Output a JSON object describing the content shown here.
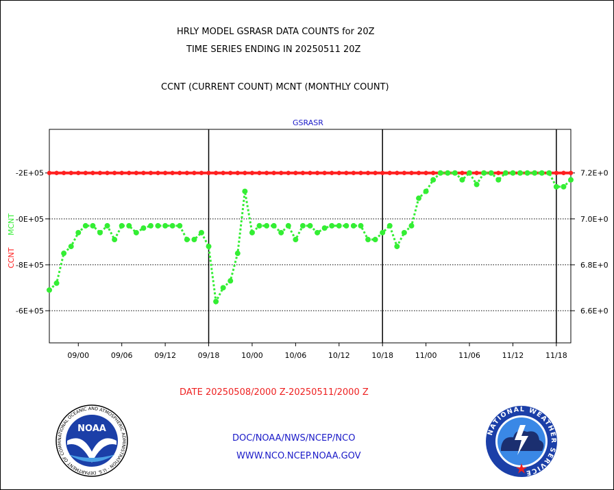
{
  "header": {
    "title_line1": "HRLY MODEL GSRASR DATA COUNTS for 20Z",
    "title_line2": "TIME SERIES ENDING IN 20250511 20Z",
    "subtitle": "CCNT (CURRENT COUNT) MCNT (MONTHLY COUNT)"
  },
  "footer": {
    "date_range": "DATE 20250508/2000 Z-20250511/2000 Z",
    "link1": "DOC/NOAA/NWS/NCEP/NCO",
    "link2": "WWW.NCO.NCEP.NOAA.GOV"
  },
  "logos": {
    "noaa_text": "NOAA",
    "noaa_ring": "NATIONAL OCEANIC AND ATMOSPHERIC ADMINISTRATION · U.S. DEPARTMENT OF COMMERCE",
    "nws_ring": "NATIONAL WEATHER SERVICE"
  },
  "colors": {
    "ccnt": "#ff2020",
    "mcnt": "#33ee33",
    "title_blue": "#1a1ac8",
    "date_red": "#ee2020"
  },
  "chart_data": {
    "type": "line",
    "title": "GSRASR",
    "ylabel_left_ccnt": "CCNT",
    "ylabel_left_mcnt": "MCNT",
    "y_left_ticks": [
      "-6E+05",
      "-8E+05",
      "-0E+05",
      "-2E+05"
    ],
    "y_right_ticks": [
      "6.6E+0",
      "6.8E+0",
      "7.0E+0",
      "7.2E+0"
    ],
    "y_right_values": [
      6.6,
      6.8,
      7.0,
      7.2
    ],
    "ylim_right": [
      6.46,
      7.39
    ],
    "x_tick_labels": [
      "09/00",
      "09/06",
      "09/12",
      "09/18",
      "10/00",
      "10/06",
      "10/12",
      "10/18",
      "11/00",
      "11/06",
      "11/12",
      "11/18"
    ],
    "x_tick_hours": [
      4,
      10,
      16,
      22,
      28,
      34,
      40,
      46,
      52,
      58,
      64,
      70
    ],
    "xlim_hours": [
      0,
      72
    ],
    "day_boundary_hours": [
      22,
      46,
      70
    ],
    "grid": "horizontal dotted",
    "series": [
      {
        "name": "CCNT",
        "y": [
          7.2,
          7.2,
          7.2,
          7.2,
          7.2,
          7.2,
          7.2,
          7.2,
          7.2,
          7.2,
          7.2,
          7.2,
          7.2,
          7.2,
          7.2,
          7.2,
          7.2,
          7.2,
          7.2,
          7.2,
          7.2,
          7.2,
          7.2,
          7.2,
          7.2,
          7.2,
          7.2,
          7.2,
          7.2,
          7.2,
          7.2,
          7.2,
          7.2,
          7.2,
          7.2,
          7.2,
          7.2,
          7.2,
          7.2,
          7.2,
          7.2,
          7.2,
          7.2,
          7.2,
          7.2,
          7.2,
          7.2,
          7.2,
          7.2,
          7.2,
          7.2,
          7.2,
          7.2,
          7.2,
          7.2,
          7.2,
          7.2,
          7.2,
          7.2,
          7.2,
          7.2,
          7.2,
          7.2,
          7.2,
          7.2,
          7.2,
          7.2,
          7.2,
          7.2,
          7.2,
          7.2,
          7.2,
          7.2
        ]
      },
      {
        "name": "MCNT",
        "y": [
          6.69,
          6.72,
          6.85,
          6.88,
          6.94,
          6.97,
          6.97,
          6.94,
          6.97,
          6.91,
          6.97,
          6.97,
          6.94,
          6.96,
          6.97,
          6.97,
          6.97,
          6.97,
          6.97,
          6.91,
          6.91,
          6.94,
          6.88,
          6.64,
          6.7,
          6.73,
          6.85,
          7.12,
          6.94,
          6.97,
          6.97,
          6.97,
          6.94,
          6.97,
          6.91,
          6.97,
          6.97,
          6.94,
          6.96,
          6.97,
          6.97,
          6.97,
          6.97,
          6.97,
          6.91,
          6.91,
          6.94,
          6.97,
          6.88,
          6.94,
          6.97,
          7.09,
          7.12,
          7.17,
          7.2,
          7.2,
          7.2,
          7.17,
          7.2,
          7.15,
          7.2,
          7.2,
          7.17,
          7.2,
          7.2,
          7.2,
          7.2,
          7.2,
          7.2,
          7.2,
          7.14,
          7.14,
          7.17
        ]
      }
    ]
  }
}
